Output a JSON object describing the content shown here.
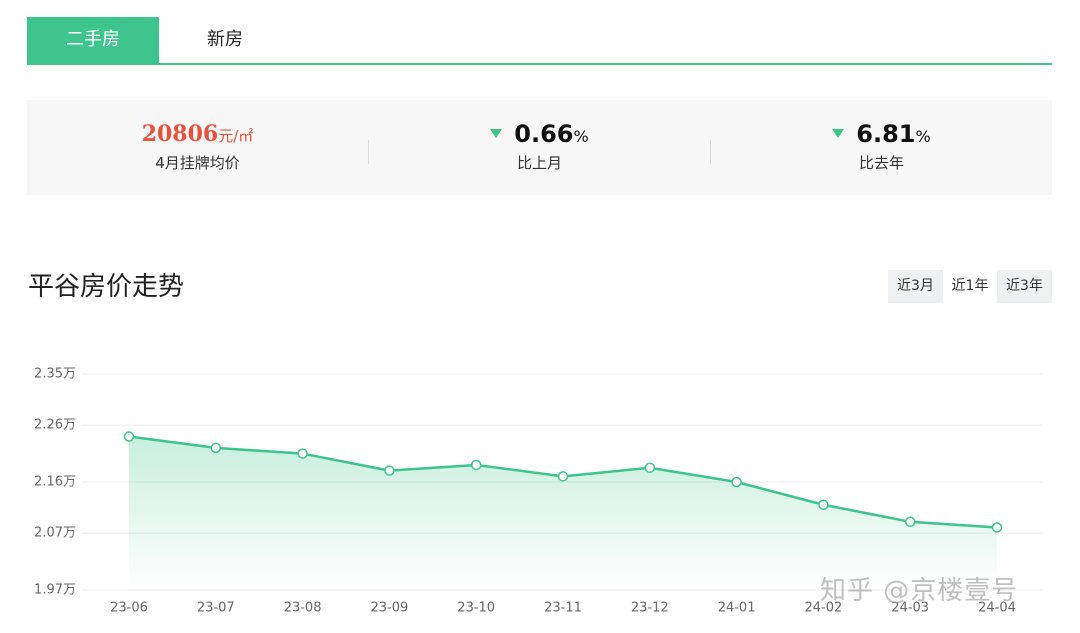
{
  "tabs": [
    "二手房",
    "新房"
  ],
  "stats": [
    {
      "value": 20806,
      "unit": "元/㎡",
      "label": "4月挂牌均价"
    },
    {
      "value": 0.66,
      "unit": "%",
      "label": "比上月"
    },
    {
      "value": 6.81,
      "unit": "%",
      "label": "比去年"
    }
  ],
  "range_buttons": [
    "近3月",
    "近1年",
    "近3年"
  ],
  "watermark": "知乎 @京楼壹号",
  "chart_data": {
    "type": "line",
    "title": "平谷房价走势",
    "categories": [
      "23-06",
      "23-07",
      "23-08",
      "23-09",
      "23-10",
      "23-11",
      "23-12",
      "24-01",
      "24-02",
      "24-03",
      "24-04"
    ],
    "values": [
      2.24,
      2.22,
      2.21,
      2.18,
      2.19,
      2.17,
      2.185,
      2.16,
      2.12,
      2.09,
      2.08
    ],
    "color": "#3cc48d",
    "area": true,
    "grid": true,
    "ylim": [
      1.97,
      2.35
    ],
    "yticks": [
      {
        "value": 1.97,
        "label": "1.97万"
      },
      {
        "value": 2.07,
        "label": "2.07万"
      },
      {
        "value": 2.16,
        "label": "2.16万"
      },
      {
        "value": 2.26,
        "label": "2.26万"
      },
      {
        "value": 2.35,
        "label": "2.35万"
      }
    ]
  }
}
